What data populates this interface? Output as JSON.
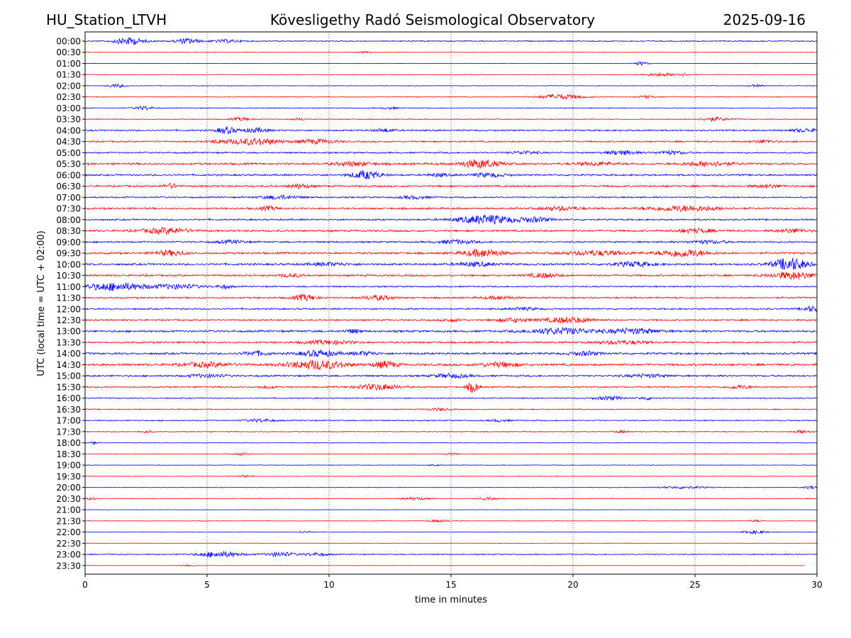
{
  "header": {
    "station": "HU_Station_LTVH",
    "observatory": "Kövesligethy Radó Seismological Observatory",
    "date": "2025-09-16"
  },
  "chart_data": {
    "type": "line",
    "title": "Kövesligethy Radó Seismological Observatory",
    "xlabel": "time in minutes",
    "ylabel": "UTC (local time = UTC + 02:00)",
    "xlim": [
      0,
      30
    ],
    "xticks": [
      0,
      5,
      10,
      15,
      20,
      25,
      30
    ],
    "vertical_gridlines_at": [
      5,
      10,
      15,
      20,
      25
    ],
    "grid": "dotted vertical",
    "trace_colors": [
      "#0000ff",
      "#ff0000"
    ],
    "rows": [
      {
        "label": "00:00",
        "color": "#0000ff",
        "noise": 0.9,
        "bursts": [
          {
            "t": 1.8,
            "a": 5,
            "w": 0.6
          },
          {
            "t": 4.2,
            "a": 3.5,
            "w": 0.5
          },
          {
            "t": 5.8,
            "a": 1.8,
            "w": 0.6
          }
        ]
      },
      {
        "label": "00:30",
        "color": "#ff0000",
        "noise": 0.35,
        "bursts": [
          {
            "t": 11.5,
            "a": 1.2,
            "w": 0.3
          }
        ]
      },
      {
        "label": "01:00",
        "color": "#0000ff",
        "noise": 0.35,
        "bursts": [
          {
            "t": 22.8,
            "a": 2.5,
            "w": 0.3
          }
        ]
      },
      {
        "label": "01:30",
        "color": "#ff0000",
        "noise": 0.45,
        "bursts": [
          {
            "t": 23.5,
            "a": 2.2,
            "w": 0.6
          },
          {
            "t": 24.5,
            "a": 1.8,
            "w": 0.4
          }
        ]
      },
      {
        "label": "02:00",
        "color": "#0000ff",
        "noise": 0.5,
        "bursts": [
          {
            "t": 1.3,
            "a": 2.2,
            "w": 0.4
          },
          {
            "t": 27.5,
            "a": 1.5,
            "w": 0.3
          }
        ]
      },
      {
        "label": "02:30",
        "color": "#ff0000",
        "noise": 0.6,
        "bursts": [
          {
            "t": 19.5,
            "a": 3.5,
            "w": 0.9
          },
          {
            "t": 23,
            "a": 2,
            "w": 0.3
          }
        ]
      },
      {
        "label": "03:00",
        "color": "#0000ff",
        "noise": 0.7,
        "bursts": [
          {
            "t": 2.4,
            "a": 2.5,
            "w": 0.4
          },
          {
            "t": 12.5,
            "a": 1.5,
            "w": 0.3
          }
        ]
      },
      {
        "label": "03:30",
        "color": "#ff0000",
        "noise": 0.7,
        "bursts": [
          {
            "t": 6.4,
            "a": 2.2,
            "w": 0.4
          },
          {
            "t": 25.8,
            "a": 2.5,
            "w": 0.6
          },
          {
            "t": 8.8,
            "a": 1.5,
            "w": 0.3
          }
        ]
      },
      {
        "label": "04:00",
        "color": "#0000ff",
        "noise": 1.2,
        "bursts": [
          {
            "t": 5.8,
            "a": 4.5,
            "w": 0.4
          },
          {
            "t": 7,
            "a": 3,
            "w": 0.5
          },
          {
            "t": 12.3,
            "a": 2.2,
            "w": 0.4
          },
          {
            "t": 29.5,
            "a": 2.2,
            "w": 0.6
          }
        ]
      },
      {
        "label": "04:30",
        "color": "#ff0000",
        "noise": 1.2,
        "bursts": [
          {
            "t": 7,
            "a": 4.5,
            "w": 1
          },
          {
            "t": 9.5,
            "a": 3,
            "w": 0.8
          },
          {
            "t": 5.5,
            "a": 2,
            "w": 0.5
          },
          {
            "t": 27.8,
            "a": 2,
            "w": 0.5
          }
        ]
      },
      {
        "label": "05:00",
        "color": "#0000ff",
        "noise": 1.2,
        "bursts": [
          {
            "t": 22,
            "a": 3,
            "w": 0.6
          },
          {
            "t": 24,
            "a": 2.2,
            "w": 0.6
          },
          {
            "t": 18,
            "a": 1.8,
            "w": 0.6
          }
        ]
      },
      {
        "label": "05:30",
        "color": "#ff0000",
        "noise": 1.6,
        "bursts": [
          {
            "t": 16.2,
            "a": 5.5,
            "w": 0.8
          },
          {
            "t": 25.5,
            "a": 3,
            "w": 1
          },
          {
            "t": 11,
            "a": 2.5,
            "w": 0.8
          },
          {
            "t": 21,
            "a": 2,
            "w": 0.8
          }
        ]
      },
      {
        "label": "06:00",
        "color": "#0000ff",
        "noise": 1.4,
        "bursts": [
          {
            "t": 11.5,
            "a": 5.5,
            "w": 0.6
          },
          {
            "t": 16.5,
            "a": 2.5,
            "w": 0.7
          },
          {
            "t": 14.5,
            "a": 2,
            "w": 0.4
          }
        ]
      },
      {
        "label": "06:30",
        "color": "#ff0000",
        "noise": 1.5,
        "bursts": [
          {
            "t": 3.5,
            "a": 3,
            "w": 0.3
          },
          {
            "t": 8.8,
            "a": 3,
            "w": 0.4
          },
          {
            "t": 28,
            "a": 2,
            "w": 0.6
          }
        ]
      },
      {
        "label": "07:00",
        "color": "#0000ff",
        "noise": 1.2,
        "bursts": [
          {
            "t": 8,
            "a": 2.5,
            "w": 0.8
          },
          {
            "t": 13.5,
            "a": 2,
            "w": 0.6
          }
        ]
      },
      {
        "label": "07:30",
        "color": "#ff0000",
        "noise": 1.4,
        "bursts": [
          {
            "t": 24.5,
            "a": 3.5,
            "w": 1.5
          },
          {
            "t": 7.5,
            "a": 2.5,
            "w": 0.4
          },
          {
            "t": 19.5,
            "a": 2.5,
            "w": 0.8
          }
        ]
      },
      {
        "label": "08:00",
        "color": "#0000ff",
        "noise": 1.3,
        "bursts": [
          {
            "t": 16.5,
            "a": 6,
            "w": 1.2
          },
          {
            "t": 18.5,
            "a": 3,
            "w": 0.6
          }
        ]
      },
      {
        "label": "08:30",
        "color": "#ff0000",
        "noise": 1.5,
        "bursts": [
          {
            "t": 3.3,
            "a": 4,
            "w": 0.9
          },
          {
            "t": 25,
            "a": 2.5,
            "w": 0.8
          },
          {
            "t": 29,
            "a": 2.5,
            "w": 0.6
          }
        ]
      },
      {
        "label": "09:00",
        "color": "#0000ff",
        "noise": 1.3,
        "bursts": [
          {
            "t": 15.2,
            "a": 2.5,
            "w": 0.8
          },
          {
            "t": 6,
            "a": 2,
            "w": 0.6
          },
          {
            "t": 25.5,
            "a": 2,
            "w": 0.8
          }
        ]
      },
      {
        "label": "09:30",
        "color": "#ff0000",
        "noise": 1.5,
        "bursts": [
          {
            "t": 16.3,
            "a": 5,
            "w": 0.8
          },
          {
            "t": 24.5,
            "a": 5,
            "w": 1
          },
          {
            "t": 3.5,
            "a": 3.5,
            "w": 0.6
          },
          {
            "t": 21,
            "a": 3,
            "w": 1.2
          }
        ]
      },
      {
        "label": "10:00",
        "color": "#0000ff",
        "noise": 1.6,
        "bursts": [
          {
            "t": 28.9,
            "a": 8.5,
            "w": 0.7
          },
          {
            "t": 22.5,
            "a": 3,
            "w": 0.8
          },
          {
            "t": 16,
            "a": 2.5,
            "w": 0.8
          },
          {
            "t": 10,
            "a": 2,
            "w": 0.8
          }
        ]
      },
      {
        "label": "10:30",
        "color": "#ff0000",
        "noise": 1.4,
        "bursts": [
          {
            "t": 29,
            "a": 5,
            "w": 0.9
          },
          {
            "t": 18.8,
            "a": 3,
            "w": 0.6
          },
          {
            "t": 8.5,
            "a": 2,
            "w": 0.5
          }
        ]
      },
      {
        "label": "11:00",
        "color": "#0000ff",
        "noise": 1.1,
        "bursts": [
          {
            "t": 1.2,
            "a": 5.5,
            "w": 1.3
          },
          {
            "t": 3.8,
            "a": 3,
            "w": 1
          },
          {
            "t": 5.7,
            "a": 2.5,
            "w": 0.3
          }
        ]
      },
      {
        "label": "11:30",
        "color": "#ff0000",
        "noise": 1.3,
        "bursts": [
          {
            "t": 9,
            "a": 4,
            "w": 0.5
          },
          {
            "t": 12,
            "a": 3,
            "w": 0.6
          },
          {
            "t": 17,
            "a": 2.2,
            "w": 0.6
          }
        ]
      },
      {
        "label": "12:00",
        "color": "#0000ff",
        "noise": 1.2,
        "bursts": [
          {
            "t": 29.8,
            "a": 3.5,
            "w": 0.4
          },
          {
            "t": 18,
            "a": 1.8,
            "w": 0.6
          }
        ]
      },
      {
        "label": "12:30",
        "color": "#ff0000",
        "noise": 1.2,
        "bursts": [
          {
            "t": 19.8,
            "a": 4,
            "w": 1
          },
          {
            "t": 17.5,
            "a": 2.5,
            "w": 0.7
          },
          {
            "t": 15,
            "a": 1.8,
            "w": 0.4
          }
        ]
      },
      {
        "label": "13:00",
        "color": "#0000ff",
        "noise": 1.6,
        "bursts": [
          {
            "t": 19.5,
            "a": 4,
            "w": 1.4
          },
          {
            "t": 22.5,
            "a": 3.5,
            "w": 1
          },
          {
            "t": 11,
            "a": 2.5,
            "w": 0.3
          }
        ]
      },
      {
        "label": "13:30",
        "color": "#ff0000",
        "noise": 1.4,
        "bursts": [
          {
            "t": 10,
            "a": 2.5,
            "w": 1
          },
          {
            "t": 22,
            "a": 2.2,
            "w": 1
          }
        ]
      },
      {
        "label": "14:00",
        "color": "#0000ff",
        "noise": 1.6,
        "bursts": [
          {
            "t": 9.6,
            "a": 4,
            "w": 0.8
          },
          {
            "t": 7,
            "a": 3,
            "w": 0.5
          },
          {
            "t": 11.5,
            "a": 2.5,
            "w": 0.5
          },
          {
            "t": 20.5,
            "a": 2.5,
            "w": 0.6
          }
        ]
      },
      {
        "label": "14:30",
        "color": "#ff0000",
        "noise": 1.7,
        "bursts": [
          {
            "t": 9.5,
            "a": 6,
            "w": 1.2
          },
          {
            "t": 12.3,
            "a": 4.5,
            "w": 0.5
          },
          {
            "t": 5,
            "a": 3,
            "w": 1
          },
          {
            "t": 17,
            "a": 3,
            "w": 0.8
          }
        ]
      },
      {
        "label": "15:00",
        "color": "#0000ff",
        "noise": 1.4,
        "bursts": [
          {
            "t": 15,
            "a": 2.5,
            "w": 0.8
          },
          {
            "t": 5,
            "a": 2,
            "w": 0.8
          },
          {
            "t": 23,
            "a": 2,
            "w": 0.8
          }
        ]
      },
      {
        "label": "15:30",
        "color": "#ff0000",
        "noise": 1.1,
        "bursts": [
          {
            "t": 15.9,
            "a": 7,
            "w": 0.25
          },
          {
            "t": 12,
            "a": 4,
            "w": 0.9
          },
          {
            "t": 26.8,
            "a": 2.5,
            "w": 0.5
          },
          {
            "t": 7.5,
            "a": 1.8,
            "w": 0.3
          }
        ]
      },
      {
        "label": "16:00",
        "color": "#0000ff",
        "noise": 0.9,
        "bursts": [
          {
            "t": 21.5,
            "a": 2.5,
            "w": 0.6
          },
          {
            "t": 23,
            "a": 2,
            "w": 0.3
          }
        ]
      },
      {
        "label": "16:30",
        "color": "#ff0000",
        "noise": 0.8,
        "bursts": [
          {
            "t": 14.5,
            "a": 1.5,
            "w": 0.5
          }
        ]
      },
      {
        "label": "17:00",
        "color": "#0000ff",
        "noise": 0.9,
        "bursts": [
          {
            "t": 7.2,
            "a": 2,
            "w": 0.6
          },
          {
            "t": 17,
            "a": 1.5,
            "w": 0.4
          }
        ]
      },
      {
        "label": "17:30",
        "color": "#ff0000",
        "noise": 0.7,
        "bursts": [
          {
            "t": 29.5,
            "a": 2.2,
            "w": 0.4
          },
          {
            "t": 22,
            "a": 1.5,
            "w": 0.3
          },
          {
            "t": 2.5,
            "a": 1.5,
            "w": 0.3
          }
        ]
      },
      {
        "label": "18:00",
        "color": "#0000ff",
        "noise": 0.5,
        "bursts": [
          {
            "t": 0.3,
            "a": 2,
            "w": 0.2
          }
        ]
      },
      {
        "label": "18:30",
        "color": "#ff0000",
        "noise": 0.5,
        "bursts": [
          {
            "t": 6.4,
            "a": 1.5,
            "w": 0.3
          },
          {
            "t": 15,
            "a": 1.2,
            "w": 0.3
          }
        ]
      },
      {
        "label": "19:00",
        "color": "#0000ff",
        "noise": 0.45,
        "bursts": [
          {
            "t": 14.3,
            "a": 1.5,
            "w": 0.2
          }
        ]
      },
      {
        "label": "19:30",
        "color": "#ff0000",
        "noise": 0.45,
        "bursts": [
          {
            "t": 6.5,
            "a": 1.2,
            "w": 0.3
          }
        ]
      },
      {
        "label": "20:00",
        "color": "#0000ff",
        "noise": 0.5,
        "bursts": [
          {
            "t": 29.8,
            "a": 2.5,
            "w": 0.3
          },
          {
            "t": 24.5,
            "a": 1.5,
            "w": 1
          }
        ]
      },
      {
        "label": "20:30",
        "color": "#ff0000",
        "noise": 0.55,
        "bursts": [
          {
            "t": 13.5,
            "a": 1.8,
            "w": 0.5
          },
          {
            "t": 16.5,
            "a": 1.5,
            "w": 0.4
          },
          {
            "t": 0.3,
            "a": 1.5,
            "w": 0.2
          }
        ]
      },
      {
        "label": "21:00",
        "color": "#0000ff",
        "noise": 0.3,
        "bursts": []
      },
      {
        "label": "21:30",
        "color": "#ff0000",
        "noise": 0.4,
        "bursts": [
          {
            "t": 14.5,
            "a": 1.8,
            "w": 0.4
          },
          {
            "t": 27.5,
            "a": 1.2,
            "w": 0.3
          }
        ]
      },
      {
        "label": "22:00",
        "color": "#0000ff",
        "noise": 0.4,
        "bursts": [
          {
            "t": 27.5,
            "a": 2.2,
            "w": 0.5
          },
          {
            "t": 9,
            "a": 1.2,
            "w": 0.3
          }
        ]
      },
      {
        "label": "22:30",
        "color": "#ff0000",
        "noise": 0.35,
        "bursts": []
      },
      {
        "label": "23:00",
        "color": "#0000ff",
        "noise": 0.8,
        "bursts": [
          {
            "t": 5.5,
            "a": 4,
            "w": 0.9
          },
          {
            "t": 8,
            "a": 3,
            "w": 0.6
          },
          {
            "t": 9.5,
            "a": 2.2,
            "w": 0.5
          }
        ]
      },
      {
        "label": "23:30",
        "color": "#ff0000",
        "noise": 0.15,
        "bursts": [
          {
            "t": 4.2,
            "a": 1.5,
            "w": 0.3
          }
        ],
        "end": 29.5
      }
    ]
  }
}
